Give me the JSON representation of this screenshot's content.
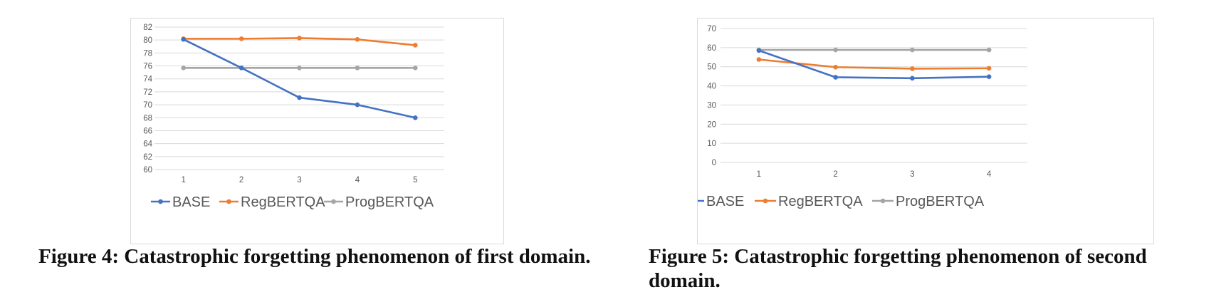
{
  "chart_data": [
    {
      "type": "line",
      "title": "",
      "xlabel": "",
      "ylabel": "",
      "categories": [
        "1",
        "2",
        "3",
        "4",
        "5"
      ],
      "ylim": [
        60,
        82
      ],
      "yticks": [
        "60",
        "62",
        "64",
        "66",
        "68",
        "70",
        "72",
        "74",
        "76",
        "78",
        "80",
        "82"
      ],
      "grid": true,
      "legend_position": "bottom",
      "series": [
        {
          "name": "BASE",
          "color": "#4472c4",
          "values": [
            80.1,
            75.7,
            71.1,
            70.0,
            68.0
          ]
        },
        {
          "name": "RegBERTQA",
          "color": "#ed7d31",
          "values": [
            80.2,
            80.2,
            80.3,
            80.1,
            79.2
          ]
        },
        {
          "name": "ProgBERTQA",
          "color": "#a5a5a5",
          "values": [
            75.7,
            75.7,
            75.7,
            75.7,
            75.7
          ]
        }
      ]
    },
    {
      "type": "line",
      "title": "",
      "xlabel": "",
      "ylabel": "",
      "categories": [
        "1",
        "2",
        "3",
        "4"
      ],
      "ylim": [
        0,
        70
      ],
      "yticks": [
        "0",
        "10",
        "20",
        "30",
        "40",
        "50",
        "60",
        "70"
      ],
      "grid": true,
      "legend_position": "bottom",
      "series": [
        {
          "name": "BASE",
          "color": "#4472c4",
          "values": [
            58.5,
            44.5,
            44.0,
            44.8
          ]
        },
        {
          "name": "RegBERTQA",
          "color": "#ed7d31",
          "values": [
            53.8,
            49.8,
            49.0,
            49.2
          ]
        },
        {
          "name": "ProgBERTQA",
          "color": "#a5a5a5",
          "values": [
            58.8,
            58.8,
            58.8,
            58.8
          ]
        }
      ]
    }
  ],
  "captions": {
    "figure4": "Figure 4: Catastrophic forgetting phenomenon of first domain.",
    "figure5": "Figure 5: Catastrophic forgetting phenomenon of second domain."
  }
}
